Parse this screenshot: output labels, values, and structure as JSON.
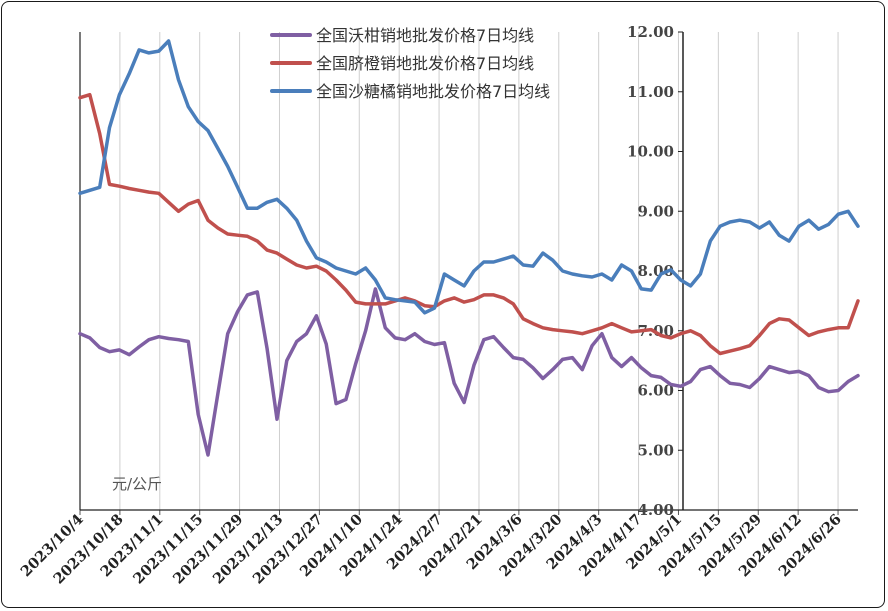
{
  "chart_data": {
    "type": "line",
    "unit_label": "元/公斤",
    "ylim": [
      4.0,
      12.0
    ],
    "yticks": [
      "4.00",
      "5.00",
      "6.00",
      "7.00",
      "8.00",
      "9.00",
      "10.00",
      "11.00",
      "12.00"
    ],
    "x_tick_labels": [
      "2023/10/4",
      "2023/10/18",
      "2023/11/1",
      "2023/11/15",
      "2023/11/29",
      "2023/12/13",
      "2023/12/27",
      "2024/1/10",
      "2024/1/24",
      "2024/2/7",
      "2024/2/21",
      "2024/3/6",
      "2024/3/20",
      "2024/4/3",
      "2024/4/17",
      "2024/5/1",
      "2024/5/15",
      "2024/5/29",
      "2024/6/12",
      "2024/6/26"
    ],
    "grid": "vertical",
    "legend_position": "top-center",
    "series": [
      {
        "name": "全国沃柑销地批发价格7日均线",
        "color": "#7f5fa3",
        "values": [
          6.95,
          6.88,
          6.72,
          6.65,
          6.68,
          6.6,
          6.73,
          6.85,
          6.9,
          6.87,
          6.85,
          6.82,
          5.6,
          4.92,
          5.95,
          6.95,
          7.32,
          7.6,
          7.65,
          6.7,
          5.52,
          6.5,
          6.82,
          6.95,
          7.25,
          6.78,
          5.78,
          5.85,
          6.45,
          7.0,
          7.7,
          7.05,
          6.88,
          6.85,
          6.95,
          6.82,
          6.77,
          6.8,
          6.12,
          5.8,
          6.42,
          6.85,
          6.9,
          6.72,
          6.55,
          6.52,
          6.38,
          6.2,
          6.35,
          6.52,
          6.55,
          6.35,
          6.75,
          6.95,
          6.55,
          6.4,
          6.55,
          6.38,
          6.25,
          6.22,
          6.1,
          6.07,
          6.15,
          6.35,
          6.4,
          6.25,
          6.12,
          6.1,
          6.05,
          6.2,
          6.4,
          6.35,
          6.3,
          6.32,
          6.25,
          6.05,
          5.98,
          6.0,
          6.15,
          6.25
        ]
      },
      {
        "name": "全国脐橙销地批发价格7日均线",
        "color": "#c0504d",
        "values": [
          10.9,
          10.95,
          10.3,
          9.45,
          9.42,
          9.38,
          9.35,
          9.32,
          9.3,
          9.15,
          9.0,
          9.12,
          9.18,
          8.85,
          8.72,
          8.62,
          8.6,
          8.58,
          8.5,
          8.35,
          8.3,
          8.2,
          8.1,
          8.05,
          8.08,
          8.0,
          7.85,
          7.68,
          7.48,
          7.45,
          7.45,
          7.45,
          7.5,
          7.55,
          7.5,
          7.42,
          7.4,
          7.5,
          7.55,
          7.48,
          7.52,
          7.6,
          7.6,
          7.55,
          7.45,
          7.2,
          7.12,
          7.05,
          7.02,
          7.0,
          6.98,
          6.95,
          7.0,
          7.05,
          7.12,
          7.05,
          6.98,
          7.0,
          7.02,
          6.92,
          6.88,
          6.95,
          7.0,
          6.92,
          6.75,
          6.62,
          6.66,
          6.7,
          6.75,
          6.92,
          7.12,
          7.2,
          7.18,
          7.05,
          6.92,
          6.98,
          7.02,
          7.05,
          7.05,
          7.5
        ]
      },
      {
        "name": "全国沙糖橘销地批发价格7日均线",
        "color": "#4a7ebb",
        "values": [
          9.3,
          9.35,
          9.4,
          10.4,
          10.95,
          11.3,
          11.7,
          11.65,
          11.68,
          11.85,
          11.2,
          10.75,
          10.5,
          10.35,
          10.05,
          9.75,
          9.4,
          9.05,
          9.05,
          9.15,
          9.2,
          9.05,
          8.85,
          8.5,
          8.22,
          8.15,
          8.05,
          8.0,
          7.95,
          8.05,
          7.85,
          7.55,
          7.52,
          7.5,
          7.48,
          7.3,
          7.38,
          7.95,
          7.85,
          7.75,
          8.0,
          8.15,
          8.15,
          8.2,
          8.25,
          8.1,
          8.08,
          8.3,
          8.18,
          8.0,
          7.95,
          7.92,
          7.9,
          7.95,
          7.85,
          8.1,
          8.0,
          7.7,
          7.68,
          7.95,
          8.02,
          7.85,
          7.75,
          7.95,
          8.5,
          8.75,
          8.82,
          8.85,
          8.82,
          8.72,
          8.82,
          8.6,
          8.5,
          8.75,
          8.85,
          8.7,
          8.78,
          8.95,
          9.0,
          8.75
        ]
      }
    ]
  }
}
